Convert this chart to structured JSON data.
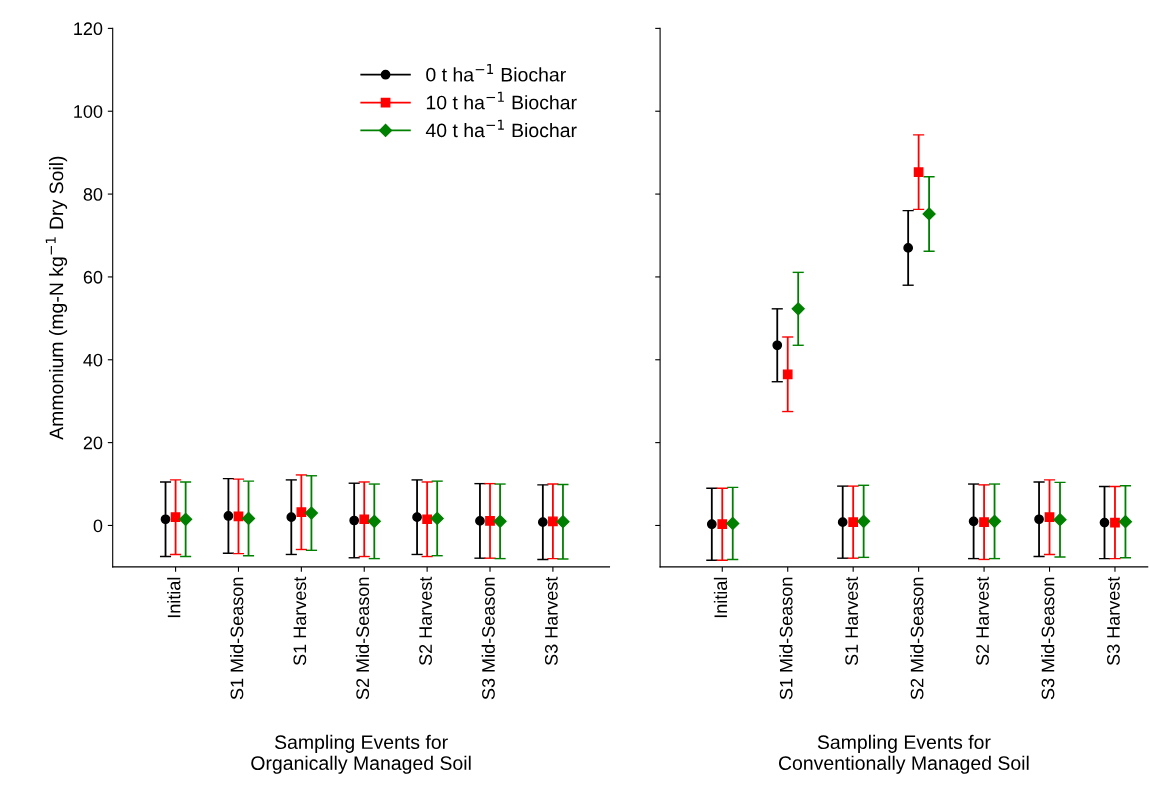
{
  "chart_data": [
    {
      "type": "scatter",
      "xlabel": "Sampling Events for\nOrganically Managed Soil",
      "ylabel": "Ammonium (mg-N kg$^{−1}$ Dry Soil)",
      "categories": [
        "Initial",
        "S1 Mid-Season",
        "S1 Harvest",
        "S2 Mid-Season",
        "S2 Harvest",
        "S3 Mid-Season",
        "S3 Harvest"
      ],
      "ylim": [
        -10,
        120
      ],
      "yticks": [
        0,
        20,
        40,
        60,
        80,
        100,
        120
      ],
      "legend": "top right",
      "grid": false,
      "series": [
        {
          "name": "0 t ha$^{−1}$ Biochar",
          "color": "#000000",
          "marker": "circle",
          "values": [
            1.5,
            2.3,
            2.0,
            1.2,
            2.0,
            1.1,
            0.8
          ],
          "errors": [
            9,
            9,
            9,
            9,
            9,
            9,
            9
          ]
        },
        {
          "name": "10 t ha$^{−1}$ Biochar",
          "color": "#ff0000",
          "marker": "square",
          "values": [
            2.0,
            2.2,
            3.2,
            1.5,
            1.5,
            1.1,
            1.0
          ],
          "errors": [
            9,
            9,
            9,
            9,
            9,
            9,
            9
          ]
        },
        {
          "name": "40 t ha$^{−1}$ Biochar",
          "color": "#008000",
          "marker": "diamond",
          "values": [
            1.5,
            1.7,
            3.0,
            1.0,
            1.7,
            1.0,
            0.9
          ],
          "errors": [
            9,
            9,
            9,
            9,
            9,
            9,
            9
          ]
        }
      ]
    },
    {
      "type": "scatter",
      "xlabel": "Sampling Events for\nConventionally Managed Soil",
      "categories": [
        "Initial",
        "S1 Mid-Season",
        "S1 Harvest",
        "S2 Mid-Season",
        "S2 Harvest",
        "S3 Mid-Season",
        "S3 Harvest"
      ],
      "ylim": [
        -10,
        120
      ],
      "yticks": [
        0,
        20,
        40,
        60,
        80,
        100,
        120
      ],
      "tick_labels": "x",
      "grid": false,
      "series": [
        {
          "color": "#000000",
          "marker": "circle",
          "values": [
            0.3,
            43.5,
            0.8,
            67.0,
            1.0,
            1.5,
            0.7
          ],
          "errors": [
            8.7,
            8.8,
            8.7,
            9,
            9,
            9,
            8.7
          ]
        },
        {
          "color": "#ff0000",
          "marker": "square",
          "values": [
            0.3,
            36.5,
            0.8,
            85.3,
            0.8,
            2.0,
            0.7
          ],
          "errors": [
            8.7,
            9,
            8.7,
            9,
            9,
            9,
            8.7
          ]
        },
        {
          "color": "#008000",
          "marker": "diamond",
          "values": [
            0.5,
            52.3,
            1.0,
            75.2,
            1.0,
            1.4,
            0.9
          ],
          "errors": [
            8.7,
            8.8,
            8.7,
            9,
            9,
            9,
            8.7
          ]
        }
      ]
    }
  ]
}
